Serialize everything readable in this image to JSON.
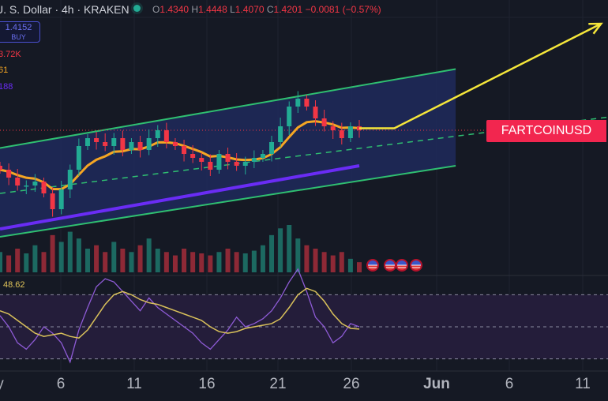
{
  "header": {
    "title": "U. S. Dollar · 4h · KRAKEN",
    "status_color": "#22ab94",
    "ohlc": {
      "o_label": "O",
      "o": "1.4340",
      "h_label": "H",
      "h": "1.4448",
      "l_label": "L",
      "l": "1.4070",
      "c_label": "C",
      "c": "1.4201",
      "change": "−0.0081 (−0.57%)"
    }
  },
  "buy_button": {
    "price": "1.4152",
    "label": "BUY"
  },
  "legend": {
    "volume": "3.72K",
    "ema": "61",
    "ma": "188"
  },
  "symbol_label": "FARTCOINUSD",
  "rsi_value": "48.62",
  "events": [
    "us-flag-icon",
    "us-flag-icon",
    "us-flag-icon",
    "us-flag-icon"
  ],
  "chart_data": {
    "type": "candlestick",
    "x_ticks": [
      "y",
      "6",
      "11",
      "16",
      "21",
      "26",
      "Jun",
      "6",
      "11"
    ],
    "ylim": [
      0.7,
      2.08
    ],
    "closes": [
      1.22,
      1.18,
      1.14,
      1.14,
      1.16,
      1.1,
      1.02,
      1.12,
      1.22,
      1.34,
      1.38,
      1.36,
      1.34,
      1.38,
      1.32,
      1.36,
      1.32,
      1.38,
      1.42,
      1.36,
      1.34,
      1.3,
      1.28,
      1.26,
      1.22,
      1.3,
      1.26,
      1.24,
      1.26,
      1.28,
      1.3,
      1.36,
      1.44,
      1.54,
      1.58,
      1.54,
      1.48,
      1.44,
      1.42,
      1.38,
      1.44,
      1.42
    ],
    "volumes": [
      30,
      25,
      35,
      28,
      40,
      30,
      55,
      45,
      60,
      50,
      35,
      40,
      30,
      45,
      35,
      30,
      40,
      50,
      35,
      30,
      25,
      35,
      30,
      28,
      25,
      30,
      35,
      30,
      28,
      32,
      40,
      55,
      65,
      70,
      50,
      40,
      35,
      30,
      25,
      30,
      20,
      15
    ],
    "ma188_points": [
      [
        0,
        0.92
      ],
      [
        41,
        1.24
      ]
    ],
    "channel": {
      "upper": [
        [
          0,
          1.33
        ],
        [
          52,
          1.73
        ]
      ],
      "lower": [
        [
          0,
          0.88
        ],
        [
          52,
          1.24
        ]
      ],
      "mid": [
        [
          0,
          1.1
        ],
        [
          70,
          1.49
        ]
      ]
    },
    "projection": [
      [
        41,
        1.43
      ],
      [
        45,
        1.43
      ],
      [
        68.6,
        1.96
      ]
    ],
    "rsi": {
      "levels": [
        70,
        50,
        30
      ],
      "values": [
        57,
        50,
        40,
        36,
        42,
        50,
        46,
        40,
        28,
        48,
        62,
        75,
        80,
        78,
        72,
        66,
        60,
        68,
        62,
        58,
        54,
        50,
        46,
        40,
        36,
        42,
        48,
        56,
        50,
        52,
        55,
        60,
        68,
        78,
        86,
        72,
        56,
        50,
        40,
        44,
        52,
        50
      ],
      "ma": [
        60,
        58,
        54,
        50,
        46,
        44,
        45,
        46,
        44,
        43,
        48,
        56,
        64,
        70,
        72,
        70,
        67,
        65,
        64,
        62,
        60,
        58,
        56,
        54,
        50,
        47,
        46,
        47,
        49,
        50,
        51,
        52,
        55,
        62,
        70,
        74,
        72,
        66,
        58,
        52,
        49,
        48.6
      ]
    },
    "colors": {
      "up": "#22ab94",
      "down": "#f23645",
      "ema": "#f5a623",
      "ma": "#6a2cf5",
      "channel": "#2fbf71",
      "projection": "#f5e63a",
      "rsi": "#8e5bd6",
      "rsi_ma": "#d9c15a"
    }
  }
}
